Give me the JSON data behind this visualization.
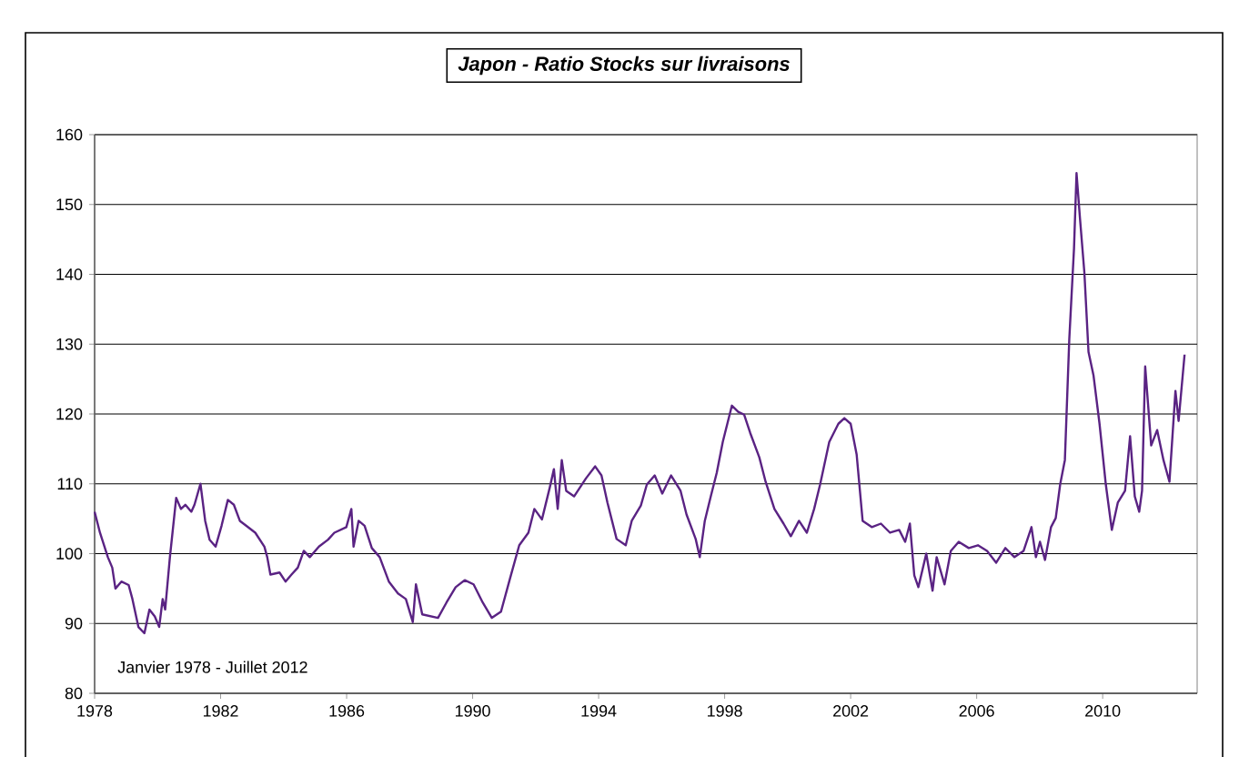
{
  "chart_data": {
    "type": "line",
    "title": "Japon - Ratio Stocks sur livraisons",
    "annotations": [
      "Janvier 1978 - Juillet 2012"
    ],
    "xlim": [
      1978,
      2013
    ],
    "xticks": [
      1978,
      1982,
      1986,
      1990,
      1994,
      1998,
      2002,
      2006,
      2010
    ],
    "ylim": [
      80,
      160
    ],
    "yticks": [
      80,
      90,
      100,
      110,
      120,
      130,
      140,
      150,
      160
    ],
    "grid": "y",
    "marker": "none",
    "line_style": "solid",
    "series": [
      {
        "color": "#5a2383",
        "x": [
          1978.0,
          1978.17,
          1978.42,
          1978.56,
          1978.66,
          1978.85,
          1979.08,
          1979.2,
          1979.39,
          1979.58,
          1979.74,
          1979.91,
          1980.05,
          1980.16,
          1980.24,
          1980.39,
          1980.59,
          1980.74,
          1980.88,
          1981.07,
          1981.17,
          1981.36,
          1981.51,
          1981.65,
          1981.84,
          1982.03,
          1982.23,
          1982.42,
          1982.61,
          1982.81,
          1983.1,
          1983.39,
          1983.48,
          1983.58,
          1983.87,
          1984.06,
          1984.25,
          1984.45,
          1984.64,
          1984.83,
          1985.12,
          1985.41,
          1985.61,
          1985.99,
          1986.15,
          1986.22,
          1986.38,
          1986.57,
          1986.8,
          1987.05,
          1987.34,
          1987.63,
          1987.88,
          1988.1,
          1988.2,
          1988.4,
          1988.9,
          1989.17,
          1989.46,
          1989.75,
          1990.03,
          1990.32,
          1990.61,
          1990.9,
          1991.19,
          1991.48,
          1991.77,
          1991.96,
          1992.2,
          1992.45,
          1992.58,
          1992.7,
          1992.83,
          1992.97,
          1993.22,
          1993.6,
          1993.89,
          1994.09,
          1994.28,
          1994.57,
          1994.86,
          1995.05,
          1995.34,
          1995.53,
          1995.78,
          1996.02,
          1996.3,
          1996.6,
          1996.79,
          1997.08,
          1997.21,
          1997.37,
          1997.56,
          1997.75,
          1997.94,
          1998.23,
          1998.43,
          1998.62,
          1998.81,
          1999.1,
          1999.3,
          1999.58,
          1999.87,
          2000.1,
          2000.36,
          2000.61,
          2000.84,
          2001.03,
          2001.32,
          2001.61,
          2001.8,
          2002.0,
          2002.19,
          2002.38,
          2002.67,
          2002.96,
          2003.25,
          2003.54,
          2003.73,
          2003.88,
          2004.02,
          2004.15,
          2004.4,
          2004.6,
          2004.73,
          2004.98,
          2005.18,
          2005.43,
          2005.75,
          2006.04,
          2006.33,
          2006.62,
          2006.91,
          2007.2,
          2007.49,
          2007.74,
          2007.88,
          2008.01,
          2008.17,
          2008.36,
          2008.51,
          2008.65,
          2008.8,
          2008.94,
          2009.09,
          2009.17,
          2009.28,
          2009.42,
          2009.55,
          2009.71,
          2009.9,
          2010.1,
          2010.29,
          2010.48,
          2010.71,
          2010.87,
          2011.02,
          2011.16,
          2011.25,
          2011.35,
          2011.54,
          2011.73,
          2011.93,
          2012.12,
          2012.31,
          2012.41,
          2012.6
        ],
        "values": [
          106,
          103,
          99.5,
          98,
          95,
          96,
          95.5,
          93.5,
          89.5,
          88.6,
          92,
          91,
          89.5,
          93.5,
          92,
          99.5,
          108,
          106.4,
          107,
          106,
          107,
          110,
          104.7,
          102,
          101,
          104,
          107.7,
          107,
          104.7,
          104,
          103,
          101,
          99.5,
          97,
          97.3,
          96,
          97,
          98,
          100.4,
          99.5,
          101,
          102,
          103,
          103.8,
          106.4,
          101,
          104.7,
          104,
          100.8,
          99.5,
          96,
          94.3,
          93.5,
          90.2,
          95.6,
          91.3,
          90.8,
          93,
          95.2,
          96.2,
          95.6,
          93,
          90.8,
          91.7,
          96.5,
          101.2,
          103,
          106.4,
          104.9,
          109.5,
          112.1,
          106.4,
          113.4,
          109,
          108.2,
          110.8,
          112.5,
          111.2,
          107.3,
          102.1,
          101.2,
          104.7,
          106.9,
          109.9,
          111.2,
          108.6,
          111.2,
          109,
          105.6,
          102.1,
          99.5,
          104.7,
          108.2,
          111.6,
          116,
          121.2,
          120.3,
          119.9,
          117.3,
          113.8,
          110.3,
          106.4,
          104.3,
          102.5,
          104.7,
          103,
          106.4,
          109.9,
          116,
          118.6,
          119.4,
          118.6,
          114.2,
          104.7,
          103.8,
          104.3,
          103,
          103.4,
          101.7,
          104.3,
          96.9,
          95.2,
          100,
          94.7,
          99.5,
          95.6,
          100.4,
          101.7,
          100.8,
          101.2,
          100.4,
          98.7,
          100.8,
          99.5,
          100.4,
          103.8,
          99.5,
          101.7,
          99.1,
          103.8,
          105.1,
          109.9,
          113.4,
          130.7,
          143.7,
          154.5,
          148,
          140.2,
          128.9,
          125.5,
          118.6,
          109.9,
          103.4,
          107.3,
          109,
          116.8,
          108.2,
          106,
          109,
          126.8,
          115.5,
          117.7,
          113.4,
          110.3,
          123.3,
          119,
          128.5
        ]
      }
    ]
  }
}
